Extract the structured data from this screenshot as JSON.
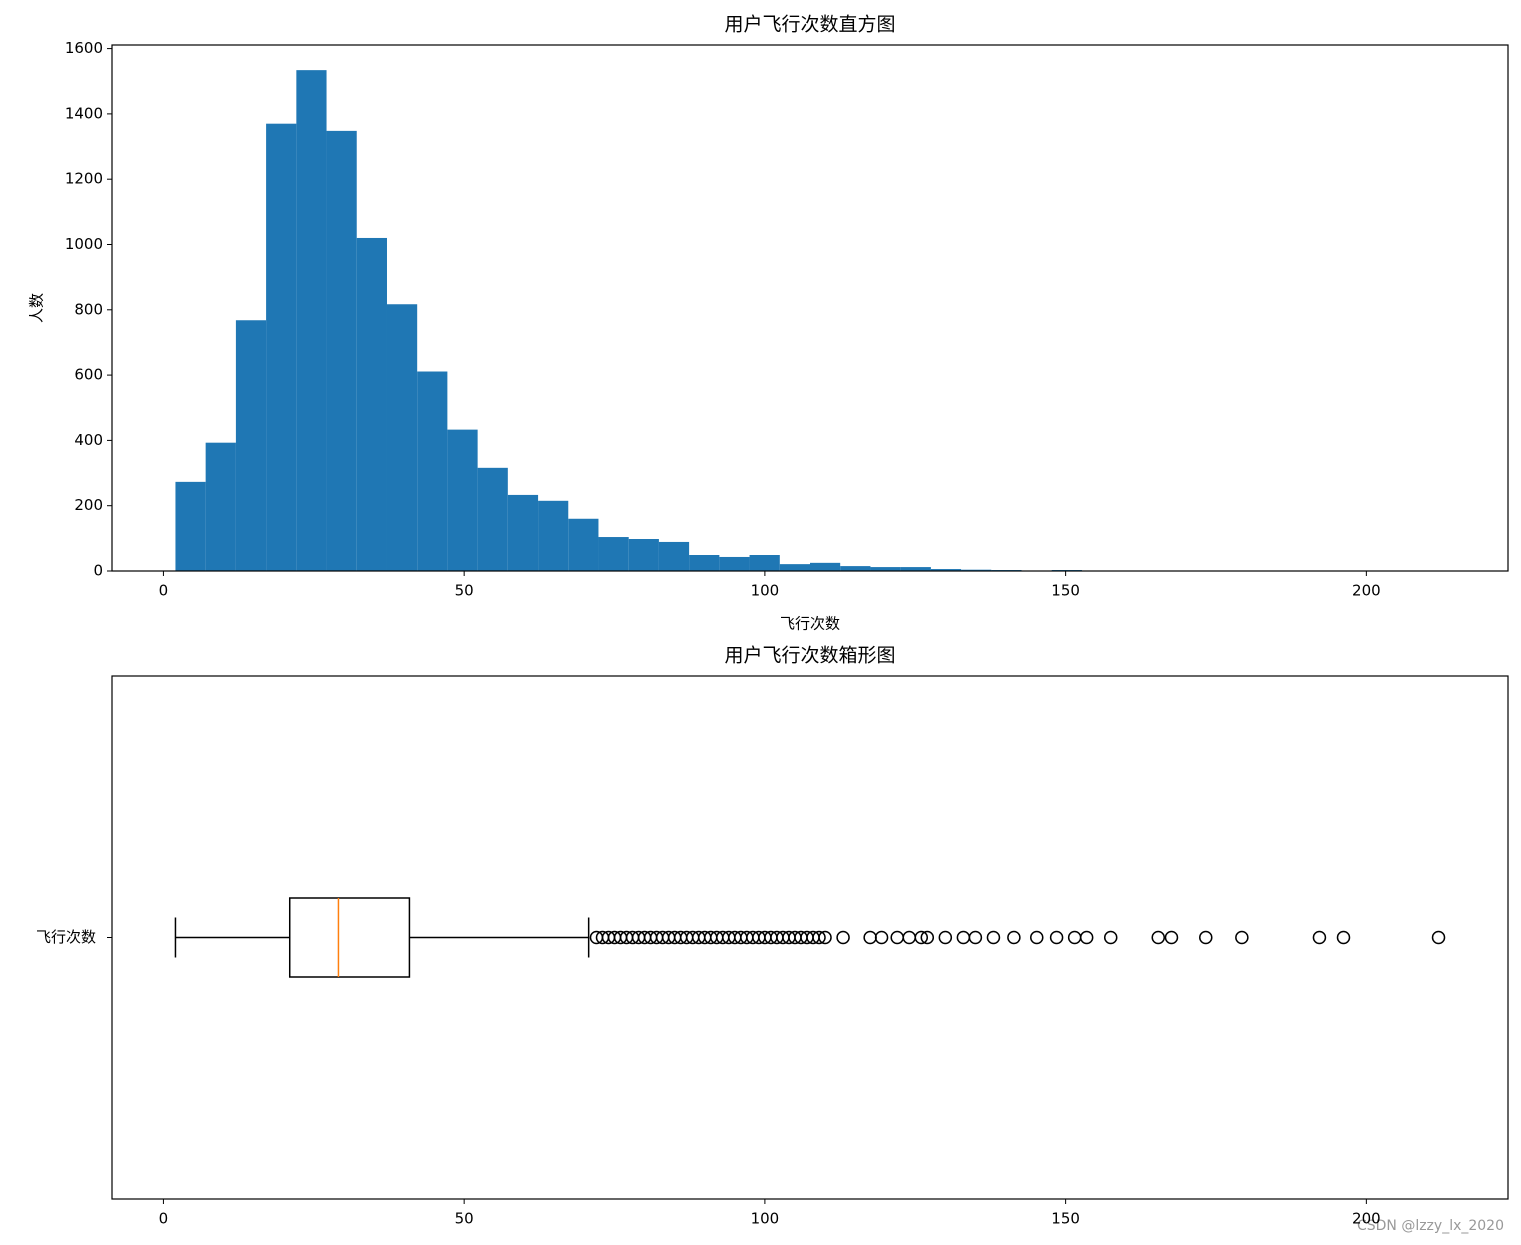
{
  "chart_data": [
    {
      "type": "histogram",
      "title": "用户飞行次数直方图",
      "x_label": "飞行次数",
      "y_label": "人数",
      "color": "#1f77b4",
      "bins": [
        2,
        7.02,
        12.05,
        17.07,
        22.1,
        27.12,
        32.14,
        37.17,
        42.19,
        47.21,
        52.24,
        57.26,
        62.29,
        67.31,
        72.33,
        77.36,
        82.38,
        87.4,
        92.43,
        97.45,
        102.48,
        107.5,
        112.52,
        117.55,
        122.57,
        127.6,
        132.62,
        137.64,
        142.67,
        147.69,
        152.71,
        157.74,
        162.76,
        167.79,
        172.81,
        177.83,
        182.86,
        187.88,
        192.9,
        197.93,
        202.95,
        207.98,
        213
      ],
      "counts": [
        273,
        393,
        768,
        1370,
        1534,
        1348,
        1020,
        817,
        611,
        433,
        316,
        233,
        215,
        160,
        104,
        98,
        89,
        49,
        43,
        49,
        21,
        25,
        15,
        12,
        12,
        6,
        4,
        3,
        1,
        3,
        1,
        1,
        0,
        1,
        1,
        1,
        1,
        0,
        1,
        1,
        0,
        1
      ],
      "xlim": [
        -8.55,
        223.55
      ],
      "xticks": [
        0,
        50,
        100,
        150,
        200
      ],
      "ylim": [
        0,
        1611
      ],
      "yticks": [
        0,
        200,
        400,
        600,
        800,
        1000,
        1200,
        1400,
        1600
      ]
    },
    {
      "type": "box",
      "title": "用户飞行次数箱形图",
      "categories": [
        "飞行次数"
      ],
      "median_color": "#ff7f0e",
      "whislo": 2,
      "q1": 21,
      "med": 29.1,
      "q3": 40.9,
      "whishi": 70.7,
      "fliers": [
        72,
        73,
        74,
        75,
        76,
        77,
        78,
        79,
        80,
        81,
        82,
        83,
        84,
        85,
        86,
        87,
        88,
        89,
        90,
        91,
        92,
        93,
        94,
        95,
        96,
        97,
        98,
        99,
        100,
        101,
        102,
        103,
        104,
        105,
        106,
        107,
        108,
        109,
        110,
        113,
        117.5,
        119.4,
        122,
        124,
        126,
        127,
        130,
        133,
        135,
        138,
        141.4,
        145.2,
        148.5,
        151.5,
        153.5,
        157.5,
        165.4,
        167.6,
        173.3,
        179.3,
        192.2,
        196.2,
        212
      ],
      "xlim": [
        -8.55,
        223.55
      ],
      "xticks": [
        0,
        50,
        100,
        150,
        200
      ]
    }
  ],
  "watermark": "CSDN @lzzy_lx_2020"
}
